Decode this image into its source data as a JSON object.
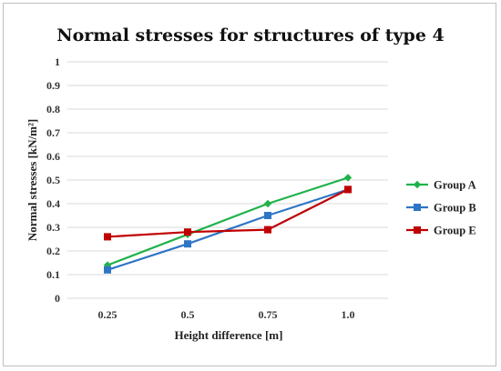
{
  "chart_data": {
    "type": "line",
    "title": "Normal stresses  for structures of type 4",
    "xlabel": "Height difference [m]",
    "ylabel": "Normal stresses [kN/m²]",
    "categories": [
      "0.25",
      "0.5",
      "0.75",
      "1.0"
    ],
    "ylim": [
      0,
      1
    ],
    "yticks": [
      "0",
      "0.1",
      "0.2",
      "0.3",
      "0.4",
      "0.5",
      "0.6",
      "0.7",
      "0.8",
      "0.9",
      "1"
    ],
    "grid": true,
    "legend_position": "right",
    "series": [
      {
        "name": "Group A",
        "color": "#1fb24a",
        "marker": "diamond",
        "values": [
          0.14,
          0.27,
          0.4,
          0.51
        ]
      },
      {
        "name": "Group B",
        "color": "#2e75c6",
        "marker": "square",
        "values": [
          0.12,
          0.23,
          0.35,
          0.46
        ]
      },
      {
        "name": "Group E",
        "color": "#c00000",
        "marker": "square",
        "values": [
          0.26,
          0.28,
          0.29,
          0.46
        ]
      }
    ]
  }
}
